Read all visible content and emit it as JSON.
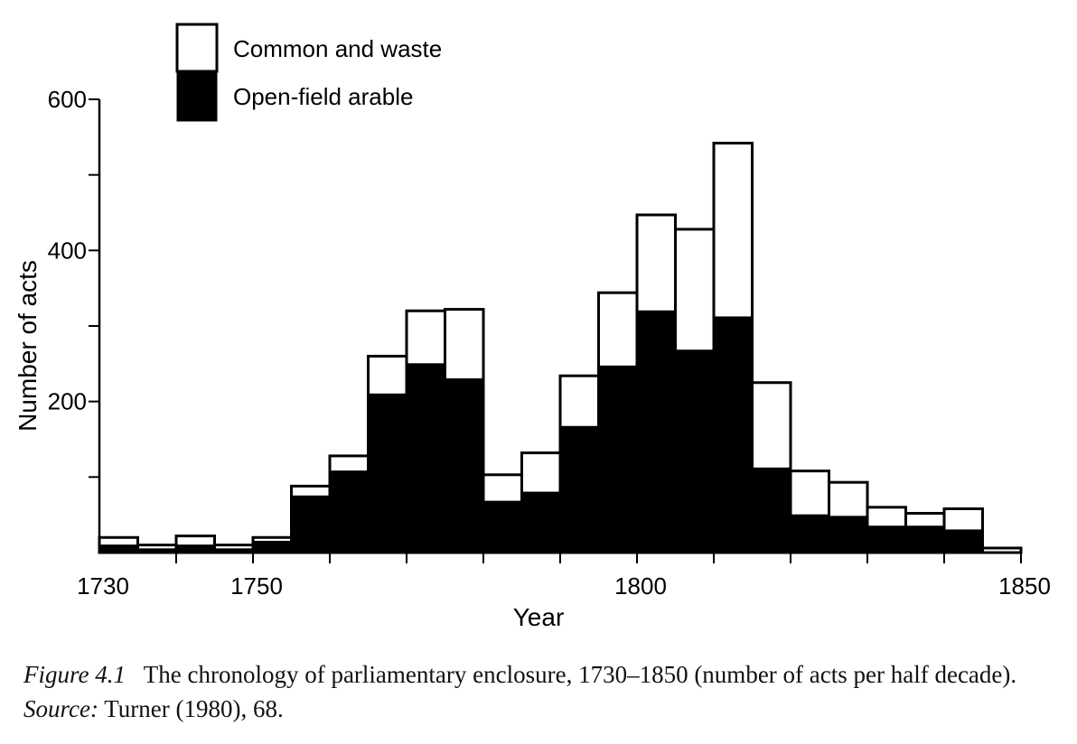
{
  "chart_data": {
    "type": "bar",
    "stacked": true,
    "x": [
      1730,
      1735,
      1740,
      1745,
      1750,
      1755,
      1760,
      1765,
      1770,
      1775,
      1780,
      1785,
      1790,
      1795,
      1800,
      1805,
      1810,
      1815,
      1820,
      1825,
      1830,
      1835,
      1840,
      1845
    ],
    "series": [
      {
        "name": "Open-field arable",
        "color": "#000000",
        "values": [
          10,
          5,
          10,
          5,
          15,
          75,
          108,
          210,
          250,
          230,
          68,
          80,
          167,
          247,
          320,
          268,
          312,
          112,
          50,
          48,
          35,
          35,
          30,
          0
        ]
      },
      {
        "name": "Common and waste",
        "color": "#ffffff",
        "values": [
          10,
          5,
          12,
          5,
          5,
          13,
          20,
          50,
          70,
          92,
          35,
          52,
          67,
          97,
          127,
          160,
          230,
          113,
          58,
          45,
          25,
          17,
          28,
          6
        ]
      }
    ],
    "xlabel": "Year",
    "ylabel": "Number of acts",
    "xticks": [
      "1730",
      "1750",
      "1800",
      "1850"
    ],
    "yticks": [
      "200",
      "400",
      "600"
    ],
    "xlim": [
      1730,
      1850
    ],
    "ylim": [
      0,
      600
    ],
    "grid": false,
    "legend": "top-left"
  },
  "caption": {
    "figure_label": "Figure 4.1",
    "text_before_source": "The chronology of parliamentary enclosure, 1730–1850 (number of acts per half decade).",
    "source_label": "Source:",
    "source_text": "Turner (1980), 68."
  }
}
